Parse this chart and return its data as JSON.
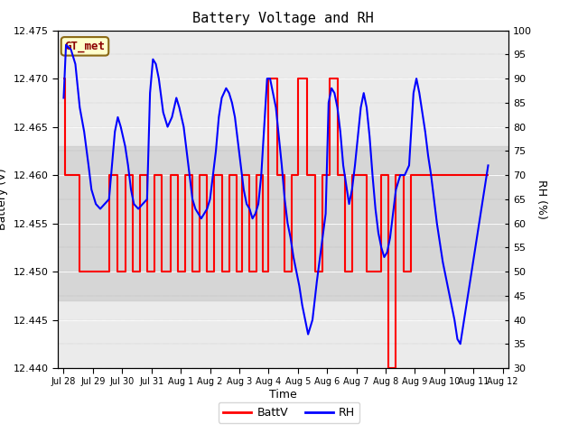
{
  "title": "Battery Voltage and RH",
  "xlabel": "Time",
  "ylabel_left": "Battery (V)",
  "ylabel_right": "RH (%)",
  "ylim_left": [
    12.44,
    12.475
  ],
  "ylim_right": [
    30,
    100
  ],
  "yticks_left": [
    12.44,
    12.445,
    12.45,
    12.455,
    12.46,
    12.465,
    12.47,
    12.475
  ],
  "yticks_right": [
    30,
    35,
    40,
    45,
    50,
    55,
    60,
    65,
    70,
    75,
    80,
    85,
    90,
    95,
    100
  ],
  "gray_band": [
    12.447,
    12.463
  ],
  "label_box": "GT_met",
  "legend_labels": [
    "BattV",
    "RH"
  ],
  "legend_colors": [
    "#ff0000",
    "#0000ff"
  ],
  "batt_color": "#ff0000",
  "rh_color": "#0000ff",
  "background_color": "#ffffff",
  "plot_bg_color": "#ebebeb",
  "title_fontsize": 11,
  "axis_fontsize": 9,
  "tick_fontsize": 8,
  "batt_data": [
    [
      0.0,
      12.47
    ],
    [
      0.05,
      12.47
    ],
    [
      0.05,
      12.46
    ],
    [
      0.55,
      12.46
    ],
    [
      0.55,
      12.45
    ],
    [
      1.55,
      12.45
    ],
    [
      1.55,
      12.46
    ],
    [
      1.85,
      12.46
    ],
    [
      1.85,
      12.45
    ],
    [
      2.1,
      12.45
    ],
    [
      2.1,
      12.46
    ],
    [
      2.35,
      12.46
    ],
    [
      2.35,
      12.45
    ],
    [
      2.6,
      12.45
    ],
    [
      2.6,
      12.46
    ],
    [
      2.85,
      12.46
    ],
    [
      2.85,
      12.45
    ],
    [
      3.1,
      12.45
    ],
    [
      3.1,
      12.46
    ],
    [
      3.35,
      12.46
    ],
    [
      3.35,
      12.45
    ],
    [
      3.65,
      12.45
    ],
    [
      3.65,
      12.46
    ],
    [
      3.9,
      12.46
    ],
    [
      3.9,
      12.45
    ],
    [
      4.15,
      12.45
    ],
    [
      4.15,
      12.46
    ],
    [
      4.4,
      12.46
    ],
    [
      4.4,
      12.45
    ],
    [
      4.65,
      12.45
    ],
    [
      4.65,
      12.46
    ],
    [
      4.9,
      12.46
    ],
    [
      4.9,
      12.45
    ],
    [
      5.15,
      12.45
    ],
    [
      5.15,
      12.46
    ],
    [
      5.4,
      12.46
    ],
    [
      5.4,
      12.45
    ],
    [
      5.65,
      12.45
    ],
    [
      5.65,
      12.46
    ],
    [
      5.9,
      12.46
    ],
    [
      5.9,
      12.45
    ],
    [
      6.1,
      12.45
    ],
    [
      6.1,
      12.46
    ],
    [
      6.35,
      12.46
    ],
    [
      6.35,
      12.45
    ],
    [
      6.6,
      12.45
    ],
    [
      6.6,
      12.46
    ],
    [
      6.8,
      12.46
    ],
    [
      6.8,
      12.45
    ],
    [
      7.0,
      12.45
    ],
    [
      7.0,
      12.47
    ],
    [
      7.3,
      12.47
    ],
    [
      7.3,
      12.46
    ],
    [
      7.55,
      12.46
    ],
    [
      7.55,
      12.45
    ],
    [
      7.8,
      12.45
    ],
    [
      7.8,
      12.46
    ],
    [
      8.0,
      12.46
    ],
    [
      8.0,
      12.47
    ],
    [
      8.3,
      12.47
    ],
    [
      8.3,
      12.46
    ],
    [
      8.6,
      12.46
    ],
    [
      8.6,
      12.45
    ],
    [
      8.85,
      12.45
    ],
    [
      8.85,
      12.46
    ],
    [
      9.1,
      12.46
    ],
    [
      9.1,
      12.47
    ],
    [
      9.35,
      12.47
    ],
    [
      9.35,
      12.46
    ],
    [
      9.6,
      12.46
    ],
    [
      9.6,
      12.45
    ],
    [
      9.85,
      12.45
    ],
    [
      9.85,
      12.46
    ],
    [
      10.35,
      12.46
    ],
    [
      10.35,
      12.45
    ],
    [
      10.85,
      12.45
    ],
    [
      10.85,
      12.46
    ],
    [
      11.1,
      12.46
    ],
    [
      11.1,
      12.44
    ],
    [
      11.35,
      12.44
    ],
    [
      11.35,
      12.46
    ],
    [
      11.6,
      12.46
    ],
    [
      11.6,
      12.45
    ],
    [
      11.85,
      12.45
    ],
    [
      11.85,
      12.46
    ],
    [
      14.5,
      12.46
    ]
  ],
  "rh_data": [
    [
      0.0,
      86
    ],
    [
      0.08,
      97
    ],
    [
      0.25,
      96
    ],
    [
      0.4,
      93
    ],
    [
      0.55,
      84
    ],
    [
      0.7,
      79
    ],
    [
      0.85,
      72
    ],
    [
      0.95,
      67
    ],
    [
      1.1,
      64
    ],
    [
      1.25,
      63
    ],
    [
      1.4,
      64
    ],
    [
      1.55,
      65
    ],
    [
      1.65,
      72
    ],
    [
      1.75,
      79
    ],
    [
      1.85,
      82
    ],
    [
      1.95,
      80
    ],
    [
      2.1,
      76
    ],
    [
      2.2,
      72
    ],
    [
      2.3,
      67
    ],
    [
      2.4,
      64
    ],
    [
      2.55,
      63
    ],
    [
      2.7,
      64
    ],
    [
      2.85,
      65
    ],
    [
      2.95,
      87
    ],
    [
      3.05,
      94
    ],
    [
      3.15,
      93
    ],
    [
      3.25,
      90
    ],
    [
      3.4,
      83
    ],
    [
      3.55,
      80
    ],
    [
      3.7,
      82
    ],
    [
      3.85,
      86
    ],
    [
      3.95,
      84
    ],
    [
      4.1,
      80
    ],
    [
      4.2,
      75
    ],
    [
      4.3,
      70
    ],
    [
      4.4,
      65
    ],
    [
      4.5,
      63
    ],
    [
      4.6,
      62
    ],
    [
      4.7,
      61
    ],
    [
      4.8,
      62
    ],
    [
      4.9,
      63
    ],
    [
      5.0,
      65
    ],
    [
      5.1,
      70
    ],
    [
      5.2,
      75
    ],
    [
      5.3,
      82
    ],
    [
      5.4,
      86
    ],
    [
      5.55,
      88
    ],
    [
      5.65,
      87
    ],
    [
      5.75,
      85
    ],
    [
      5.85,
      82
    ],
    [
      5.95,
      77
    ],
    [
      6.05,
      72
    ],
    [
      6.15,
      67
    ],
    [
      6.25,
      64
    ],
    [
      6.35,
      63
    ],
    [
      6.45,
      61
    ],
    [
      6.55,
      62
    ],
    [
      6.65,
      64
    ],
    [
      6.75,
      70
    ],
    [
      6.85,
      80
    ],
    [
      6.95,
      90
    ],
    [
      7.05,
      90
    ],
    [
      7.15,
      87
    ],
    [
      7.25,
      84
    ],
    [
      7.35,
      78
    ],
    [
      7.45,
      72
    ],
    [
      7.55,
      65
    ],
    [
      7.65,
      60
    ],
    [
      7.75,
      57
    ],
    [
      7.85,
      53
    ],
    [
      7.95,
      50
    ],
    [
      8.05,
      47
    ],
    [
      8.15,
      43
    ],
    [
      8.25,
      40
    ],
    [
      8.35,
      37
    ],
    [
      8.5,
      40
    ],
    [
      8.65,
      48
    ],
    [
      8.8,
      55
    ],
    [
      8.95,
      62
    ],
    [
      9.05,
      85
    ],
    [
      9.15,
      88
    ],
    [
      9.25,
      87
    ],
    [
      9.35,
      84
    ],
    [
      9.45,
      79
    ],
    [
      9.55,
      72
    ],
    [
      9.65,
      68
    ],
    [
      9.75,
      64
    ],
    [
      9.85,
      67
    ],
    [
      9.95,
      72
    ],
    [
      10.05,
      78
    ],
    [
      10.15,
      84
    ],
    [
      10.25,
      87
    ],
    [
      10.35,
      84
    ],
    [
      10.45,
      78
    ],
    [
      10.55,
      70
    ],
    [
      10.65,
      63
    ],
    [
      10.75,
      58
    ],
    [
      10.85,
      55
    ],
    [
      10.95,
      53
    ],
    [
      11.05,
      54
    ],
    [
      11.15,
      57
    ],
    [
      11.25,
      62
    ],
    [
      11.35,
      67
    ],
    [
      11.5,
      70
    ],
    [
      11.65,
      70
    ],
    [
      11.8,
      72
    ],
    [
      11.95,
      87
    ],
    [
      12.05,
      90
    ],
    [
      12.15,
      87
    ],
    [
      12.25,
      83
    ],
    [
      12.35,
      79
    ],
    [
      12.45,
      74
    ],
    [
      12.55,
      70
    ],
    [
      12.65,
      65
    ],
    [
      12.75,
      60
    ],
    [
      12.85,
      56
    ],
    [
      12.95,
      52
    ],
    [
      13.05,
      49
    ],
    [
      13.15,
      46
    ],
    [
      13.25,
      43
    ],
    [
      13.35,
      40
    ],
    [
      13.45,
      36
    ],
    [
      13.55,
      35
    ],
    [
      14.5,
      72
    ]
  ],
  "xtick_positions": [
    0,
    1,
    2,
    3,
    4,
    5,
    6,
    7,
    8,
    9,
    10,
    11,
    12,
    13,
    14,
    15
  ],
  "xtick_labels": [
    "Jul 28",
    "Jul 29",
    "Jul 30",
    "Jul 31",
    "Aug 1",
    "Aug 2",
    "Aug 3",
    "Aug 4",
    "Aug 5",
    "Aug 6",
    "Aug 7",
    "Aug 8",
    "Aug 9",
    "Aug 10",
    "Aug 11",
    "Aug 12"
  ]
}
